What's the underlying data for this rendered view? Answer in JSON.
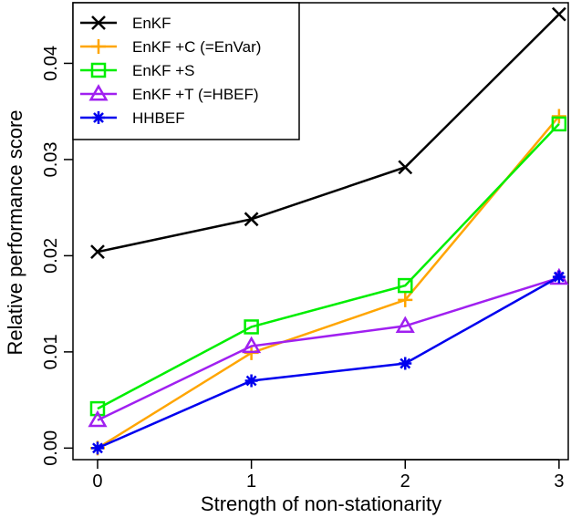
{
  "chart_data": {
    "type": "line",
    "xlabel": "Strength of non-stationarity",
    "ylabel": "Relative performance score",
    "x": [
      0,
      1,
      2,
      3
    ],
    "xticks": [
      "0",
      "1",
      "2",
      "3"
    ],
    "yticks": [
      "0.00",
      "0.01",
      "0.02",
      "0.03",
      "0.04"
    ],
    "ytick_values": [
      0,
      0.01,
      0.02,
      0.03,
      0.04
    ],
    "xlim": [
      -0.16,
      3.06
    ],
    "ylim": [
      -0.0012,
      0.0463
    ],
    "legend_position": "top-left",
    "grid": false,
    "series": [
      {
        "name": "EnKF",
        "color": "#000000",
        "marker": "x",
        "values": [
          0.0204,
          0.0238,
          0.0292,
          0.0451
        ]
      },
      {
        "name": "EnKF +C (=EnVar)",
        "color": "#ffa500",
        "marker": "plus",
        "values": [
          0.0,
          0.0099,
          0.0154,
          0.0345
        ]
      },
      {
        "name": "EnKF +S",
        "color": "#00ee00",
        "marker": "square",
        "values": [
          0.0041,
          0.0126,
          0.0169,
          0.0337
        ]
      },
      {
        "name": "EnKF +T (=HBEF)",
        "color": "#a020f0",
        "marker": "triangle",
        "values": [
          0.0029,
          0.0106,
          0.0127,
          0.0177
        ]
      },
      {
        "name": "HHBEF",
        "color": "#0000ee",
        "marker": "asterisk",
        "values": [
          0.0,
          0.007,
          0.0088,
          0.0178
        ]
      }
    ]
  }
}
